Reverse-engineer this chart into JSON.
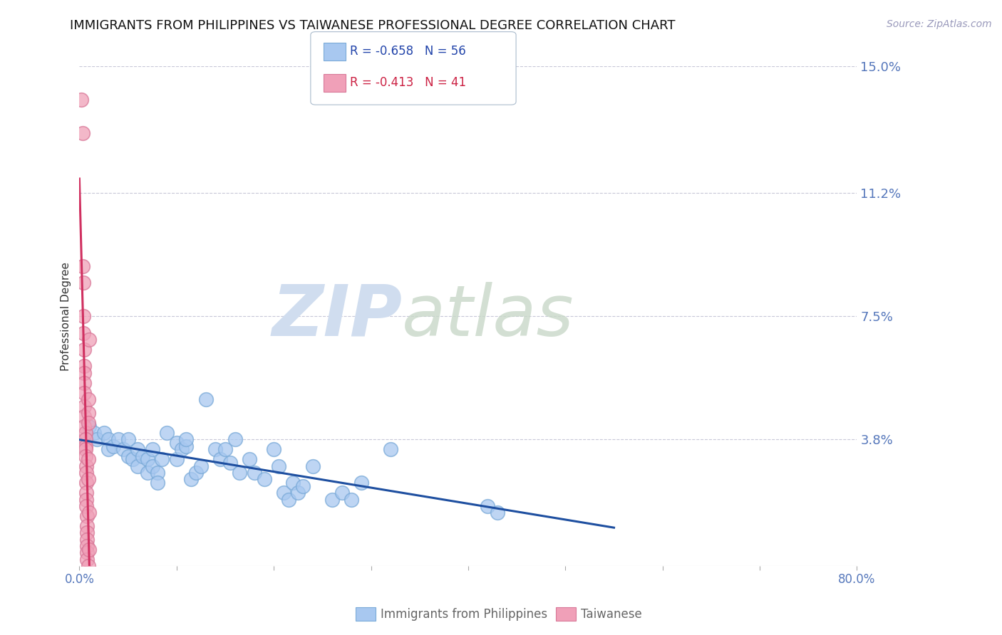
{
  "title": "IMMIGRANTS FROM PHILIPPINES VS TAIWANESE PROFESSIONAL DEGREE CORRELATION CHART",
  "source": "Source: ZipAtlas.com",
  "ylabel": "Professional Degree",
  "watermark_zip": "ZIP",
  "watermark_atlas": "atlas",
  "xlim": [
    0,
    0.8
  ],
  "ylim": [
    0,
    0.15
  ],
  "y_ticks_right": [
    0.038,
    0.075,
    0.112,
    0.15
  ],
  "y_tick_labels_right": [
    "3.8%",
    "7.5%",
    "11.2%",
    "15.0%"
  ],
  "legend1_label": "Immigrants from Philippines",
  "legend2_label": "Taiwanese",
  "series1_color": "#A8C8F0",
  "series2_color": "#F0A0B8",
  "series1_edge_color": "#7AAAD8",
  "series2_edge_color": "#D87898",
  "series1_line_color": "#1E4FA0",
  "series2_line_color": "#D03060",
  "series1_R": -0.658,
  "series1_N": 56,
  "series2_R": -0.413,
  "series2_N": 41,
  "series1_data": [
    [
      0.01,
      0.042
    ],
    [
      0.015,
      0.04
    ],
    [
      0.018,
      0.038
    ],
    [
      0.025,
      0.04
    ],
    [
      0.03,
      0.038
    ],
    [
      0.03,
      0.035
    ],
    [
      0.035,
      0.036
    ],
    [
      0.04,
      0.038
    ],
    [
      0.045,
      0.035
    ],
    [
      0.05,
      0.033
    ],
    [
      0.05,
      0.038
    ],
    [
      0.055,
      0.032
    ],
    [
      0.06,
      0.035
    ],
    [
      0.06,
      0.03
    ],
    [
      0.065,
      0.033
    ],
    [
      0.07,
      0.032
    ],
    [
      0.07,
      0.028
    ],
    [
      0.075,
      0.03
    ],
    [
      0.075,
      0.035
    ],
    [
      0.08,
      0.028
    ],
    [
      0.08,
      0.025
    ],
    [
      0.085,
      0.032
    ],
    [
      0.09,
      0.04
    ],
    [
      0.1,
      0.037
    ],
    [
      0.1,
      0.032
    ],
    [
      0.105,
      0.035
    ],
    [
      0.11,
      0.036
    ],
    [
      0.11,
      0.038
    ],
    [
      0.115,
      0.026
    ],
    [
      0.12,
      0.028
    ],
    [
      0.125,
      0.03
    ],
    [
      0.13,
      0.05
    ],
    [
      0.14,
      0.035
    ],
    [
      0.145,
      0.032
    ],
    [
      0.15,
      0.035
    ],
    [
      0.155,
      0.031
    ],
    [
      0.16,
      0.038
    ],
    [
      0.165,
      0.028
    ],
    [
      0.175,
      0.032
    ],
    [
      0.18,
      0.028
    ],
    [
      0.19,
      0.026
    ],
    [
      0.2,
      0.035
    ],
    [
      0.205,
      0.03
    ],
    [
      0.21,
      0.022
    ],
    [
      0.215,
      0.02
    ],
    [
      0.22,
      0.025
    ],
    [
      0.225,
      0.022
    ],
    [
      0.23,
      0.024
    ],
    [
      0.24,
      0.03
    ],
    [
      0.26,
      0.02
    ],
    [
      0.27,
      0.022
    ],
    [
      0.28,
      0.02
    ],
    [
      0.29,
      0.025
    ],
    [
      0.32,
      0.035
    ],
    [
      0.42,
      0.018
    ],
    [
      0.43,
      0.016
    ]
  ],
  "series2_data": [
    [
      0.002,
      0.14
    ],
    [
      0.003,
      0.13
    ],
    [
      0.003,
      0.09
    ],
    [
      0.004,
      0.085
    ],
    [
      0.004,
      0.075
    ],
    [
      0.004,
      0.07
    ],
    [
      0.005,
      0.065
    ],
    [
      0.005,
      0.06
    ],
    [
      0.005,
      0.058
    ],
    [
      0.005,
      0.055
    ],
    [
      0.005,
      0.052
    ],
    [
      0.005,
      0.048
    ],
    [
      0.005,
      0.045
    ],
    [
      0.005,
      0.042
    ],
    [
      0.006,
      0.04
    ],
    [
      0.006,
      0.038
    ],
    [
      0.006,
      0.036
    ],
    [
      0.006,
      0.035
    ],
    [
      0.006,
      0.033
    ],
    [
      0.007,
      0.03
    ],
    [
      0.007,
      0.028
    ],
    [
      0.007,
      0.025
    ],
    [
      0.007,
      0.022
    ],
    [
      0.007,
      0.02
    ],
    [
      0.007,
      0.018
    ],
    [
      0.008,
      0.015
    ],
    [
      0.008,
      0.012
    ],
    [
      0.008,
      0.01
    ],
    [
      0.008,
      0.008
    ],
    [
      0.008,
      0.006
    ],
    [
      0.008,
      0.004
    ],
    [
      0.008,
      0.002
    ],
    [
      0.009,
      0.0
    ],
    [
      0.009,
      0.05
    ],
    [
      0.009,
      0.046
    ],
    [
      0.009,
      0.043
    ],
    [
      0.009,
      0.032
    ],
    [
      0.009,
      0.026
    ],
    [
      0.01,
      0.016
    ],
    [
      0.01,
      0.005
    ],
    [
      0.01,
      0.068
    ]
  ],
  "background_color": "#FFFFFF",
  "grid_color": "#C8C8D8",
  "title_fontsize": 13,
  "axis_tick_color": "#5577BB",
  "axis_label_color": "#333333",
  "legend_text_color1": "#2244AA",
  "legend_text_color2": "#CC2244"
}
